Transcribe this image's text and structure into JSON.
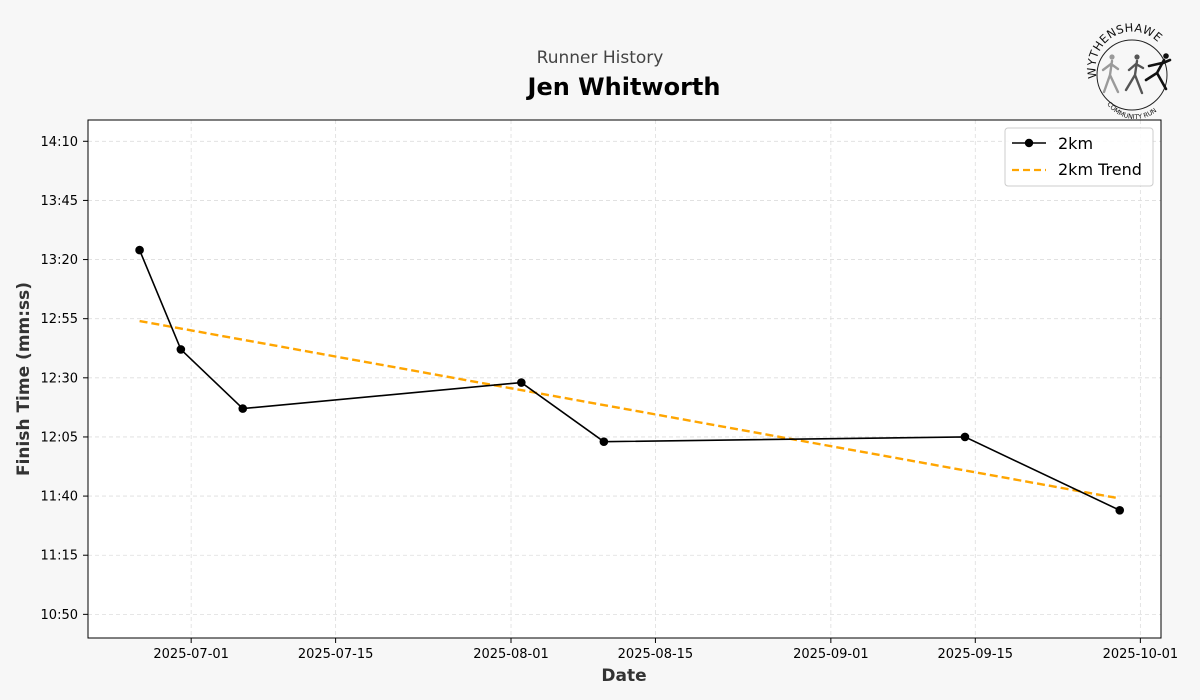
{
  "chart_data": {
    "type": "line",
    "subtitle": "Runner History",
    "title": "Jen Whitworth",
    "xlabel": "Date",
    "ylabel": "Finish Time (mm:ss)",
    "x_ticks": [
      "2025-07-01",
      "2025-07-15",
      "2025-08-01",
      "2025-08-15",
      "2025-09-01",
      "2025-09-15",
      "2025-10-01"
    ],
    "y_ticks": [
      "10:50",
      "11:15",
      "11:40",
      "12:05",
      "12:30",
      "12:55",
      "13:20",
      "13:45",
      "14:10"
    ],
    "xlim": [
      "2025-06-21",
      "2025-10-03"
    ],
    "ylim": [
      "10:40",
      "14:19"
    ],
    "grid": true,
    "legend_position": "top-right",
    "series": [
      {
        "name": "2km",
        "style": "solid-with-markers",
        "color": "#000000",
        "points": [
          {
            "x": "2025-06-26",
            "y": "13:24"
          },
          {
            "x": "2025-06-30",
            "y": "12:42"
          },
          {
            "x": "2025-07-06",
            "y": "12:17"
          },
          {
            "x": "2025-08-02",
            "y": "12:28"
          },
          {
            "x": "2025-08-10",
            "y": "12:03"
          },
          {
            "x": "2025-09-14",
            "y": "12:05"
          },
          {
            "x": "2025-09-29",
            "y": "11:34"
          }
        ]
      },
      {
        "name": "2km Trend",
        "style": "dashed",
        "color": "#FFA500",
        "points": [
          {
            "x": "2025-06-26",
            "y": "12:54"
          },
          {
            "x": "2025-09-29",
            "y": "11:39"
          }
        ]
      }
    ]
  },
  "logo": {
    "name": "WYTHENSHAWE",
    "tagline": "COMMUNITY RUN"
  }
}
